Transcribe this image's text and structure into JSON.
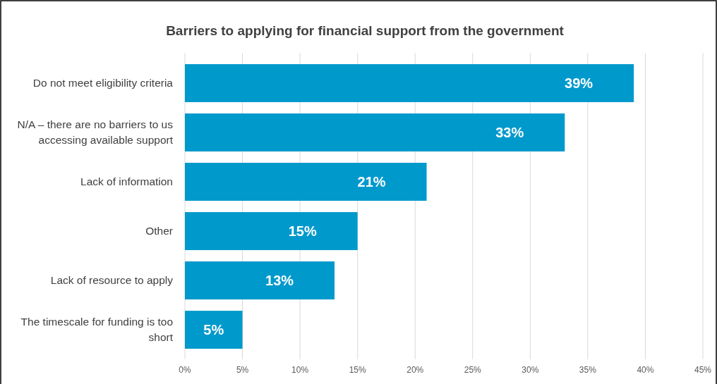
{
  "chart_data": {
    "type": "bar",
    "orientation": "horizontal",
    "title": "Barriers to applying for financial support from the government",
    "categories": [
      "Do not meet eligibility criteria",
      "N/A – there are no barriers to us accessing available support",
      "Lack of information",
      "Other",
      "Lack of resource to apply",
      "The timescale for funding is too short"
    ],
    "values": [
      39,
      33,
      21,
      15,
      13,
      5
    ],
    "value_labels": [
      "39%",
      "33%",
      "21%",
      "15%",
      "13%",
      "5%"
    ],
    "color": "#0099cc",
    "grid": "x",
    "xlim": [
      0,
      45
    ],
    "xticks": [
      {
        "value": 0,
        "label": "0%"
      },
      {
        "value": 5,
        "label": "5%"
      },
      {
        "value": 10,
        "label": "10%"
      },
      {
        "value": 15,
        "label": "15%"
      },
      {
        "value": 20,
        "label": "20%"
      },
      {
        "value": 25,
        "label": "25%"
      },
      {
        "value": 30,
        "label": "30%"
      },
      {
        "value": 35,
        "label": "35%"
      },
      {
        "value": 40,
        "label": "40%"
      },
      {
        "value": 45,
        "label": "45%"
      }
    ]
  }
}
